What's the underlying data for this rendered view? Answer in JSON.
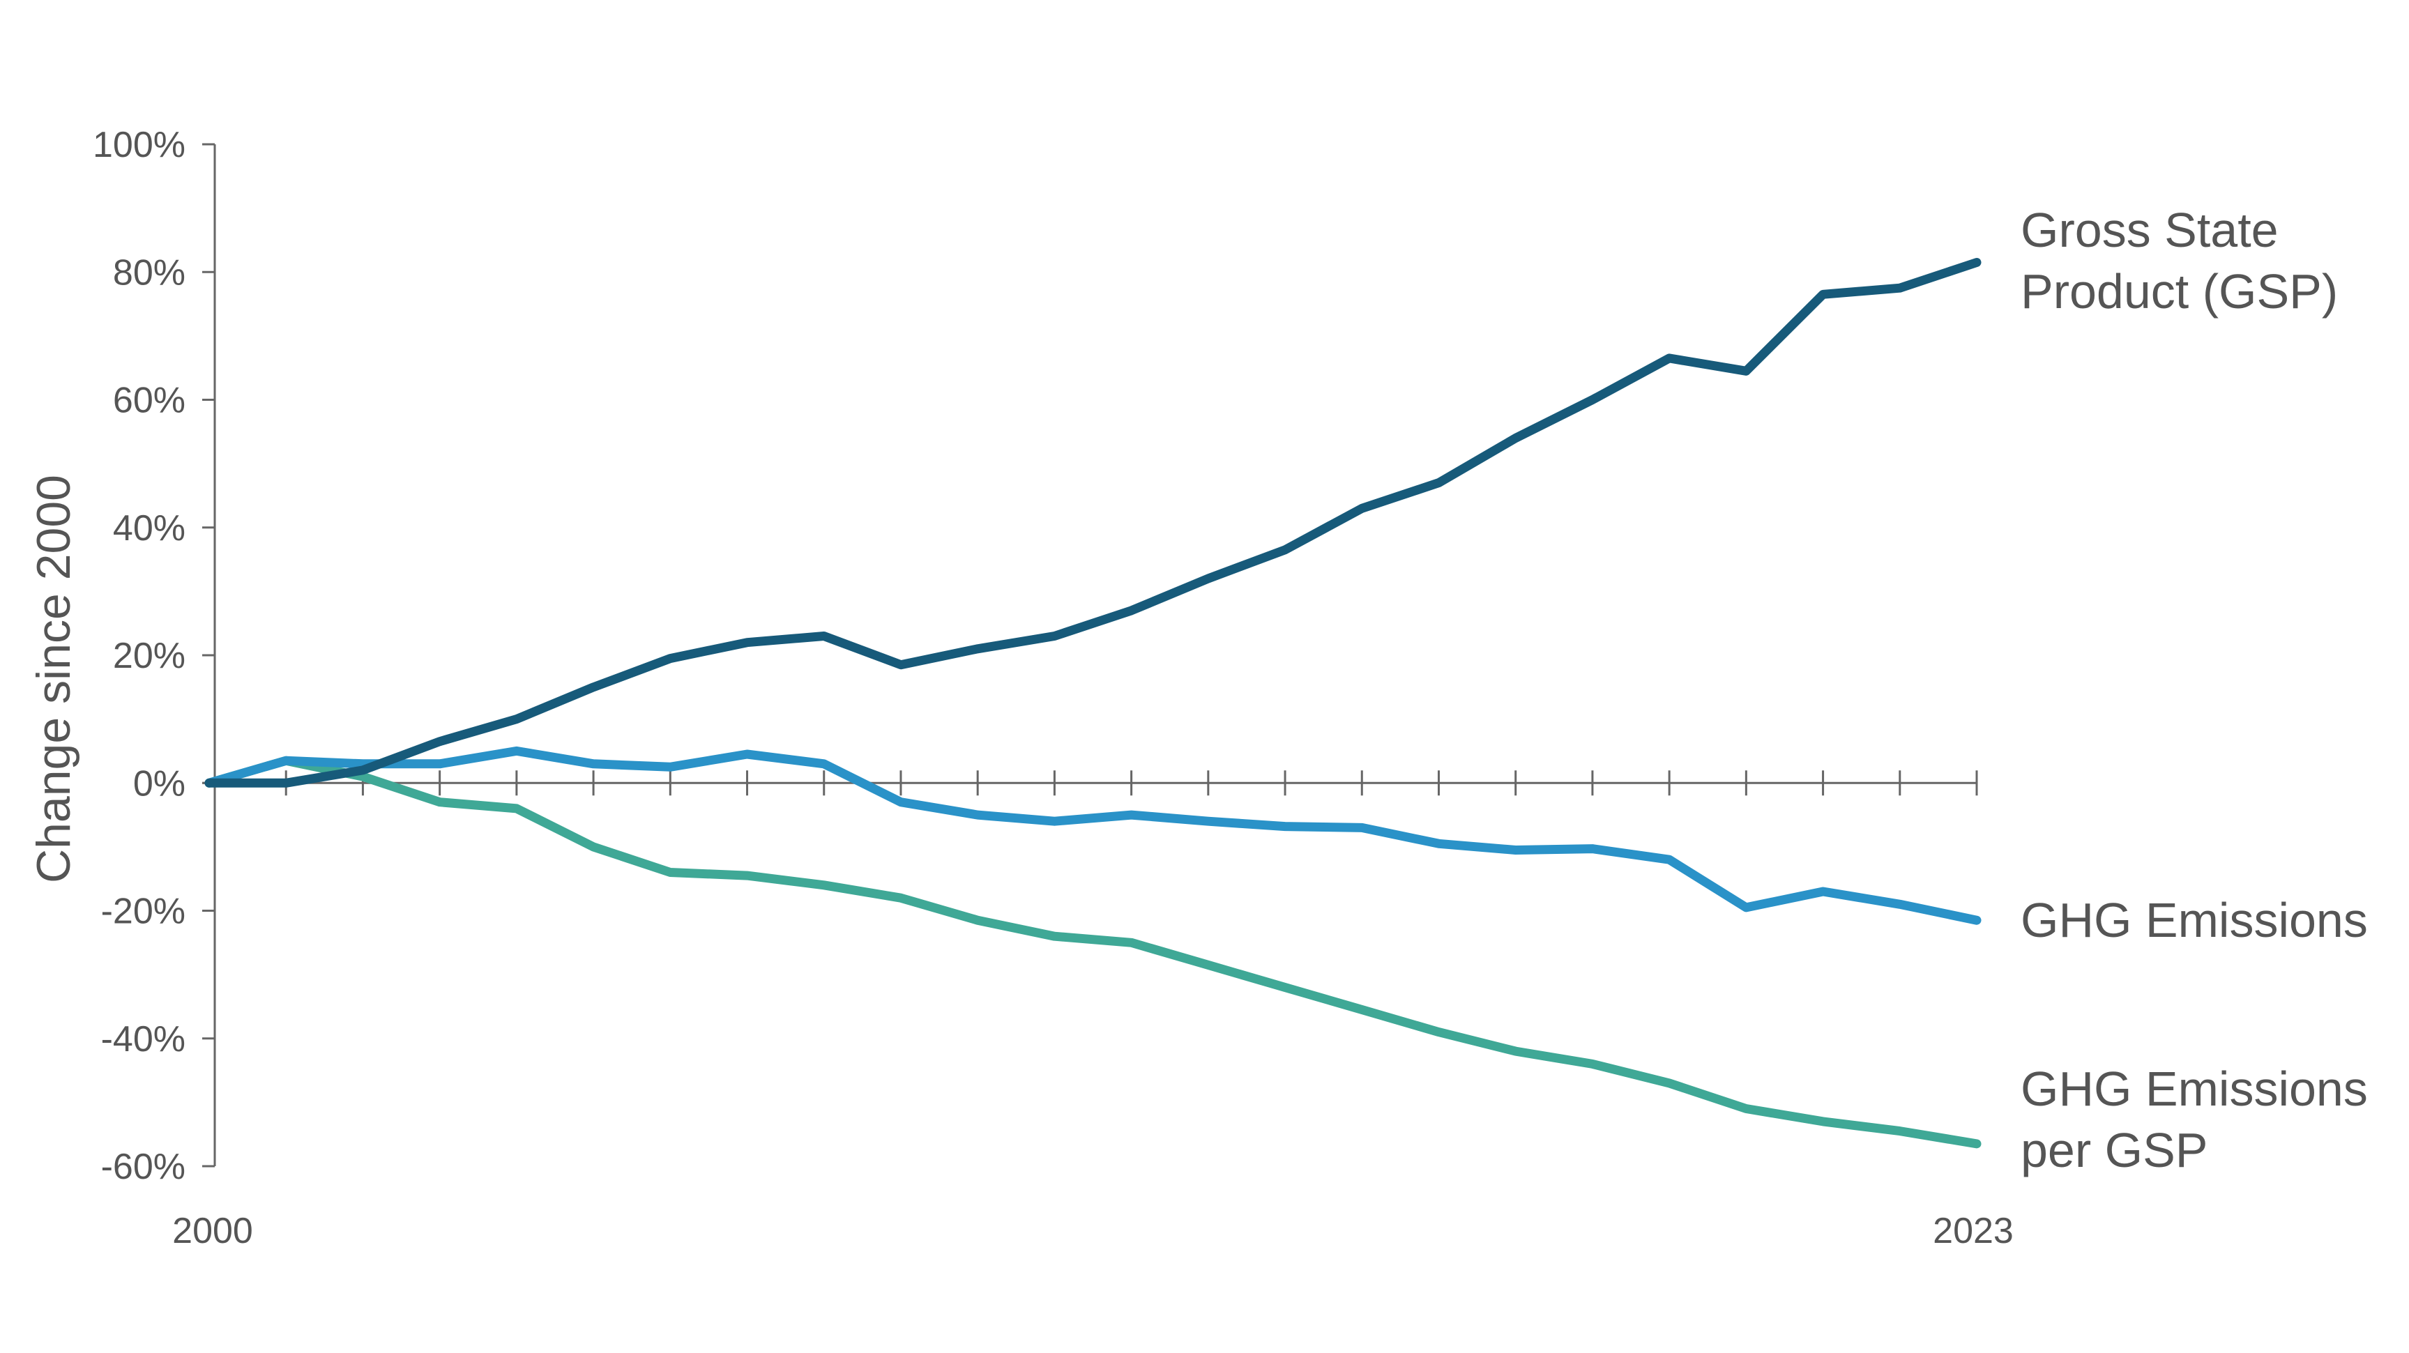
{
  "chart_data": {
    "type": "line",
    "xlabel": "",
    "ylabel": "Change since 2000",
    "x": [
      2000,
      2001,
      2002,
      2003,
      2004,
      2005,
      2006,
      2007,
      2008,
      2009,
      2010,
      2011,
      2012,
      2013,
      2014,
      2015,
      2016,
      2017,
      2018,
      2019,
      2020,
      2021,
      2022,
      2023
    ],
    "xlim": [
      2000,
      2023
    ],
    "x_tick_labels": [
      "2000",
      "2023"
    ],
    "ylim": [
      -60,
      100
    ],
    "y_ticks": [
      {
        "value": 100,
        "label": "100%"
      },
      {
        "value": 80,
        "label": "80%"
      },
      {
        "value": 60,
        "label": "60%"
      },
      {
        "value": 40,
        "label": "40%"
      },
      {
        "value": 20,
        "label": "20%"
      },
      {
        "value": 0,
        "label": "0%"
      },
      {
        "value": -20,
        "label": "-20%"
      },
      {
        "value": -40,
        "label": "-40%"
      },
      {
        "value": -60,
        "label": "-60%"
      }
    ],
    "grid": false,
    "legend": "inline labels at right end of lines",
    "series": [
      {
        "name": "Gross State Product (GSP)",
        "label_lines": [
          "Gross State",
          "Product (GSP)"
        ],
        "color": "#175A7A",
        "values": [
          0,
          0,
          2,
          6.5,
          10,
          15,
          19.5,
          22,
          23,
          18.5,
          21,
          23,
          27,
          32,
          36.5,
          43,
          47,
          54,
          60,
          66.5,
          64.5,
          76.5,
          77.5,
          81.5
        ]
      },
      {
        "name": "GHG Emissions",
        "label_lines": [
          "GHG Emissions"
        ],
        "color": "#2A92C8",
        "values": [
          0,
          3.5,
          3,
          3,
          5,
          3,
          2.5,
          4.5,
          3,
          -3,
          -5,
          -6,
          -5,
          -6,
          -6.8,
          -7,
          -9.5,
          -10.5,
          -10.3,
          -12,
          -19.5,
          -17,
          -19,
          -21.5
        ]
      },
      {
        "name": "GHG Emissions per GSP",
        "label_lines": [
          "GHG Emissions",
          "per GSP"
        ],
        "color": "#3FA896",
        "values": [
          0,
          3.5,
          1,
          -3,
          -4,
          -10,
          -14,
          -14.5,
          -16,
          -18,
          -21.5,
          -24,
          -25,
          -28.5,
          -32,
          -35.5,
          -39,
          -42,
          -44,
          -47,
          -51,
          -53,
          -54.5,
          -56.5
        ]
      }
    ]
  }
}
